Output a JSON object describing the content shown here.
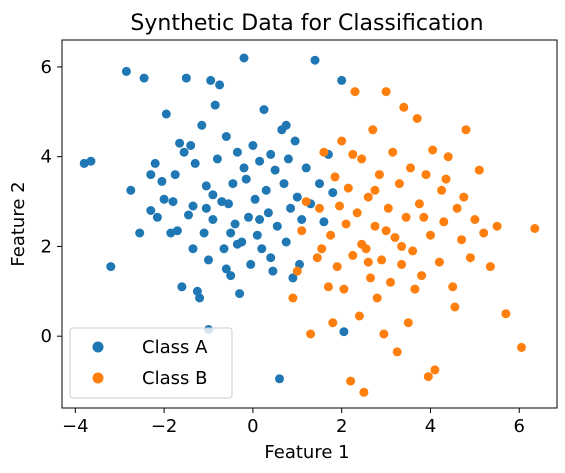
{
  "chart_data": {
    "type": "scatter",
    "title": "Synthetic Data for Classification",
    "xlabel": "Feature 1",
    "ylabel": "Feature 2",
    "xlim": [
      -4.3,
      6.85
    ],
    "ylim": [
      -1.6,
      6.6
    ],
    "xticks": [
      -4,
      -2,
      0,
      2,
      4,
      6
    ],
    "yticks": [
      0,
      2,
      4,
      6
    ],
    "grid": false,
    "legend_position": "lower-left",
    "colors": {
      "Class A": "#1f77b4",
      "Class B": "#ff7f0e"
    },
    "series": [
      {
        "name": "Class A",
        "color": "#1f77b4",
        "points": [
          [
            -3.8,
            3.85
          ],
          [
            -3.65,
            3.9
          ],
          [
            -3.2,
            1.55
          ],
          [
            -2.85,
            5.9
          ],
          [
            -2.75,
            3.25
          ],
          [
            -2.55,
            2.3
          ],
          [
            -2.45,
            5.75
          ],
          [
            -2.3,
            3.6
          ],
          [
            -2.2,
            3.85
          ],
          [
            -2.15,
            2.65
          ],
          [
            -2.05,
            3.45
          ],
          [
            -1.95,
            4.95
          ],
          [
            -1.85,
            2.3
          ],
          [
            -1.75,
            3.6
          ],
          [
            -1.7,
            2.35
          ],
          [
            -1.6,
            1.1
          ],
          [
            -1.55,
            4.1
          ],
          [
            -1.5,
            5.75
          ],
          [
            -1.45,
            2.7
          ],
          [
            -1.4,
            4.25
          ],
          [
            -1.35,
            1.95
          ],
          [
            -1.3,
            3.85
          ],
          [
            -1.25,
            1.0
          ],
          [
            -1.2,
            0.85
          ],
          [
            -1.15,
            4.7
          ],
          [
            -1.1,
            2.3
          ],
          [
            -1.05,
            3.35
          ],
          [
            -1.0,
            1.7
          ],
          [
            -0.95,
            5.7
          ],
          [
            -0.9,
            2.6
          ],
          [
            -0.85,
            5.15
          ],
          [
            -0.8,
            3.95
          ],
          [
            -0.75,
            5.6
          ],
          [
            -0.7,
            3.0
          ],
          [
            -0.65,
            1.95
          ],
          [
            -0.6,
            4.45
          ],
          [
            -0.55,
            2.95
          ],
          [
            -0.5,
            1.35
          ],
          [
            -0.45,
            3.4
          ],
          [
            -0.4,
            2.5
          ],
          [
            -0.35,
            4.1
          ],
          [
            -0.3,
            0.95
          ],
          [
            -0.25,
            2.1
          ],
          [
            -0.2,
            6.2
          ],
          [
            -0.15,
            3.5
          ],
          [
            -0.1,
            2.65
          ],
          [
            -0.05,
            1.6
          ],
          [
            0.0,
            4.25
          ],
          [
            0.05,
            3.05
          ],
          [
            0.1,
            2.25
          ],
          [
            0.15,
            3.9
          ],
          [
            0.2,
            1.95
          ],
          [
            0.25,
            5.05
          ],
          [
            0.3,
            3.25
          ],
          [
            0.35,
            2.75
          ],
          [
            0.4,
            4.05
          ],
          [
            0.45,
            1.45
          ],
          [
            0.5,
            3.7
          ],
          [
            0.55,
            2.45
          ],
          [
            0.6,
            -0.95
          ],
          [
            0.65,
            4.6
          ],
          [
            0.7,
            3.4
          ],
          [
            0.75,
            2.1
          ],
          [
            0.8,
            3.95
          ],
          [
            0.85,
            2.85
          ],
          [
            0.9,
            1.3
          ],
          [
            0.95,
            4.35
          ],
          [
            1.0,
            3.1
          ],
          [
            1.1,
            2.6
          ],
          [
            1.2,
            3.75
          ],
          [
            1.3,
            2.95
          ],
          [
            1.4,
            6.15
          ],
          [
            1.5,
            3.4
          ],
          [
            1.6,
            2.55
          ],
          [
            1.7,
            4.05
          ],
          [
            1.8,
            3.2
          ],
          [
            2.0,
            5.7
          ],
          [
            2.05,
            0.1
          ],
          [
            -1.0,
            0.15
          ],
          [
            -2.0,
            3.05
          ],
          [
            -1.65,
            4.3
          ],
          [
            -0.9,
            3.15
          ],
          [
            -0.35,
            2.05
          ],
          [
            0.15,
            2.6
          ],
          [
            -1.35,
            2.9
          ],
          [
            -2.3,
            2.8
          ],
          [
            -0.6,
            1.5
          ],
          [
            0.4,
            1.75
          ],
          [
            1.05,
            1.6
          ],
          [
            -1.8,
            3.0
          ],
          [
            -0.2,
            3.75
          ],
          [
            0.75,
            4.7
          ],
          [
            -1.05,
            2.85
          ],
          [
            -0.5,
            2.3
          ]
        ]
      },
      {
        "name": "Class B",
        "color": "#ff7f0e",
        "points": [
          [
            0.9,
            0.85
          ],
          [
            1.0,
            1.45
          ],
          [
            1.1,
            2.35
          ],
          [
            1.2,
            3.0
          ],
          [
            1.3,
            0.05
          ],
          [
            1.45,
            1.75
          ],
          [
            1.5,
            2.85
          ],
          [
            1.6,
            4.1
          ],
          [
            1.7,
            1.1
          ],
          [
            1.75,
            2.25
          ],
          [
            1.85,
            3.55
          ],
          [
            1.9,
            1.55
          ],
          [
            1.95,
            2.9
          ],
          [
            2.0,
            4.35
          ],
          [
            2.05,
            1.05
          ],
          [
            2.1,
            2.5
          ],
          [
            2.15,
            3.3
          ],
          [
            2.2,
            -1.0
          ],
          [
            2.25,
            1.8
          ],
          [
            2.3,
            5.45
          ],
          [
            2.35,
            2.75
          ],
          [
            2.4,
            0.45
          ],
          [
            2.45,
            3.95
          ],
          [
            2.5,
            -1.25
          ],
          [
            2.55,
            1.95
          ],
          [
            2.6,
            3.1
          ],
          [
            2.65,
            1.3
          ],
          [
            2.7,
            4.6
          ],
          [
            2.75,
            2.45
          ],
          [
            2.8,
            0.85
          ],
          [
            2.85,
            3.6
          ],
          [
            2.9,
            1.7
          ],
          [
            3.0,
            5.45
          ],
          [
            3.05,
            2.85
          ],
          [
            3.1,
            1.2
          ],
          [
            3.15,
            4.1
          ],
          [
            3.2,
            2.2
          ],
          [
            3.25,
            -0.35
          ],
          [
            3.3,
            3.4
          ],
          [
            3.35,
            1.6
          ],
          [
            3.4,
            5.1
          ],
          [
            3.45,
            2.65
          ],
          [
            3.5,
            0.3
          ],
          [
            3.55,
            3.75
          ],
          [
            3.6,
            1.9
          ],
          [
            3.7,
            4.85
          ],
          [
            3.75,
            2.95
          ],
          [
            3.8,
            1.35
          ],
          [
            3.9,
            3.6
          ],
          [
            4.0,
            2.25
          ],
          [
            4.05,
            4.15
          ],
          [
            4.1,
            -0.75
          ],
          [
            4.2,
            1.65
          ],
          [
            4.25,
            3.25
          ],
          [
            4.3,
            2.55
          ],
          [
            4.4,
            4.0
          ],
          [
            4.5,
            1.1
          ],
          [
            4.6,
            2.85
          ],
          [
            4.7,
            2.15
          ],
          [
            4.8,
            4.6
          ],
          [
            4.9,
            1.75
          ],
          [
            5.0,
            2.6
          ],
          [
            5.1,
            3.7
          ],
          [
            5.2,
            2.3
          ],
          [
            5.35,
            1.55
          ],
          [
            5.5,
            2.45
          ],
          [
            5.7,
            0.5
          ],
          [
            6.05,
            -0.25
          ],
          [
            6.35,
            2.4
          ],
          [
            4.55,
            0.65
          ],
          [
            3.95,
            -0.9
          ],
          [
            2.95,
            0.05
          ],
          [
            1.8,
            0.3
          ],
          [
            2.45,
            2.05
          ],
          [
            3.35,
            2.0
          ],
          [
            2.75,
            3.25
          ],
          [
            3.85,
            2.65
          ],
          [
            4.35,
            3.5
          ],
          [
            1.55,
            1.95
          ],
          [
            2.25,
            4.05
          ],
          [
            3.65,
            1.05
          ],
          [
            4.75,
            3.1
          ],
          [
            2.6,
            1.65
          ],
          [
            3.0,
            2.35
          ]
        ]
      }
    ]
  }
}
